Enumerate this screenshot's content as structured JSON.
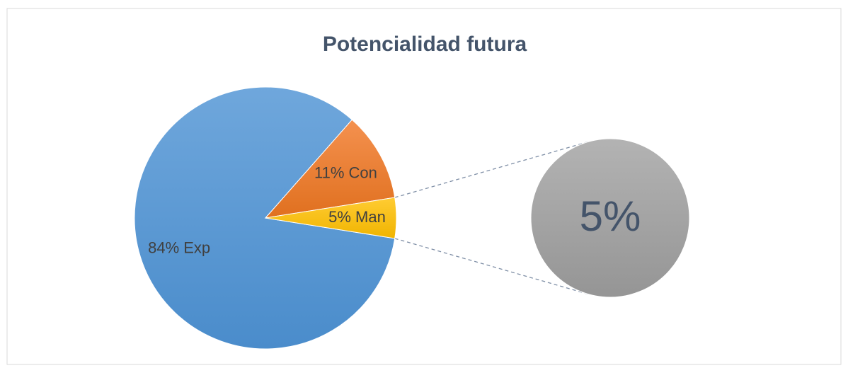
{
  "chart_data": {
    "type": "pie-of-pie",
    "title": "Potencialidad futura",
    "categories": [
      "Exp",
      "Con",
      "Man"
    ],
    "values": [
      84,
      11,
      5
    ],
    "value_labels": [
      "84% Exp",
      "11% Con",
      "5% Man"
    ],
    "colors": [
      "#5b9bd5",
      "#ed7d31",
      "#ffc000"
    ],
    "secondary": {
      "values": [
        5
      ],
      "value_labels": [
        "5%"
      ],
      "color": "#a5a5a5"
    }
  }
}
